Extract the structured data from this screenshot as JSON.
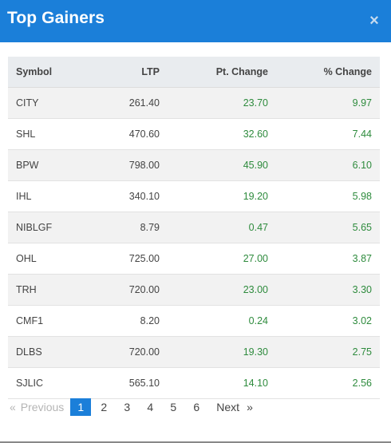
{
  "header": {
    "title": "Top Gainers",
    "close_glyph": "×",
    "close_icon": "close-icon"
  },
  "table": {
    "columns": [
      "Symbol",
      "LTP",
      "Pt. Change",
      "% Change"
    ],
    "rows": [
      {
        "symbol": "CITY",
        "ltp": "261.40",
        "pt_change": "23.70",
        "pct_change": "9.97"
      },
      {
        "symbol": "SHL",
        "ltp": "470.60",
        "pt_change": "32.60",
        "pct_change": "7.44"
      },
      {
        "symbol": "BPW",
        "ltp": "798.00",
        "pt_change": "45.90",
        "pct_change": "6.10"
      },
      {
        "symbol": "IHL",
        "ltp": "340.10",
        "pt_change": "19.20",
        "pct_change": "5.98"
      },
      {
        "symbol": "NIBLGF",
        "ltp": "8.79",
        "pt_change": "0.47",
        "pct_change": "5.65"
      },
      {
        "symbol": "OHL",
        "ltp": "725.00",
        "pt_change": "27.00",
        "pct_change": "3.87"
      },
      {
        "symbol": "TRH",
        "ltp": "720.00",
        "pt_change": "23.00",
        "pct_change": "3.30"
      },
      {
        "symbol": "CMF1",
        "ltp": "8.20",
        "pt_change": "0.24",
        "pct_change": "3.02"
      },
      {
        "symbol": "DLBS",
        "ltp": "720.00",
        "pt_change": "19.30",
        "pct_change": "2.75"
      },
      {
        "symbol": "SJLIC",
        "ltp": "565.10",
        "pt_change": "14.10",
        "pct_change": "2.56"
      }
    ]
  },
  "pagination": {
    "first_glyph": "«",
    "previous_label": "Previous",
    "pages": [
      "1",
      "2",
      "3",
      "4",
      "5",
      "6"
    ],
    "active_page": "1",
    "next_label": "Next",
    "last_glyph": "»"
  },
  "colors": {
    "header_bg": "#1b7fd9",
    "positive": "#2e8b3d",
    "active_page": "#1b7fd9"
  }
}
